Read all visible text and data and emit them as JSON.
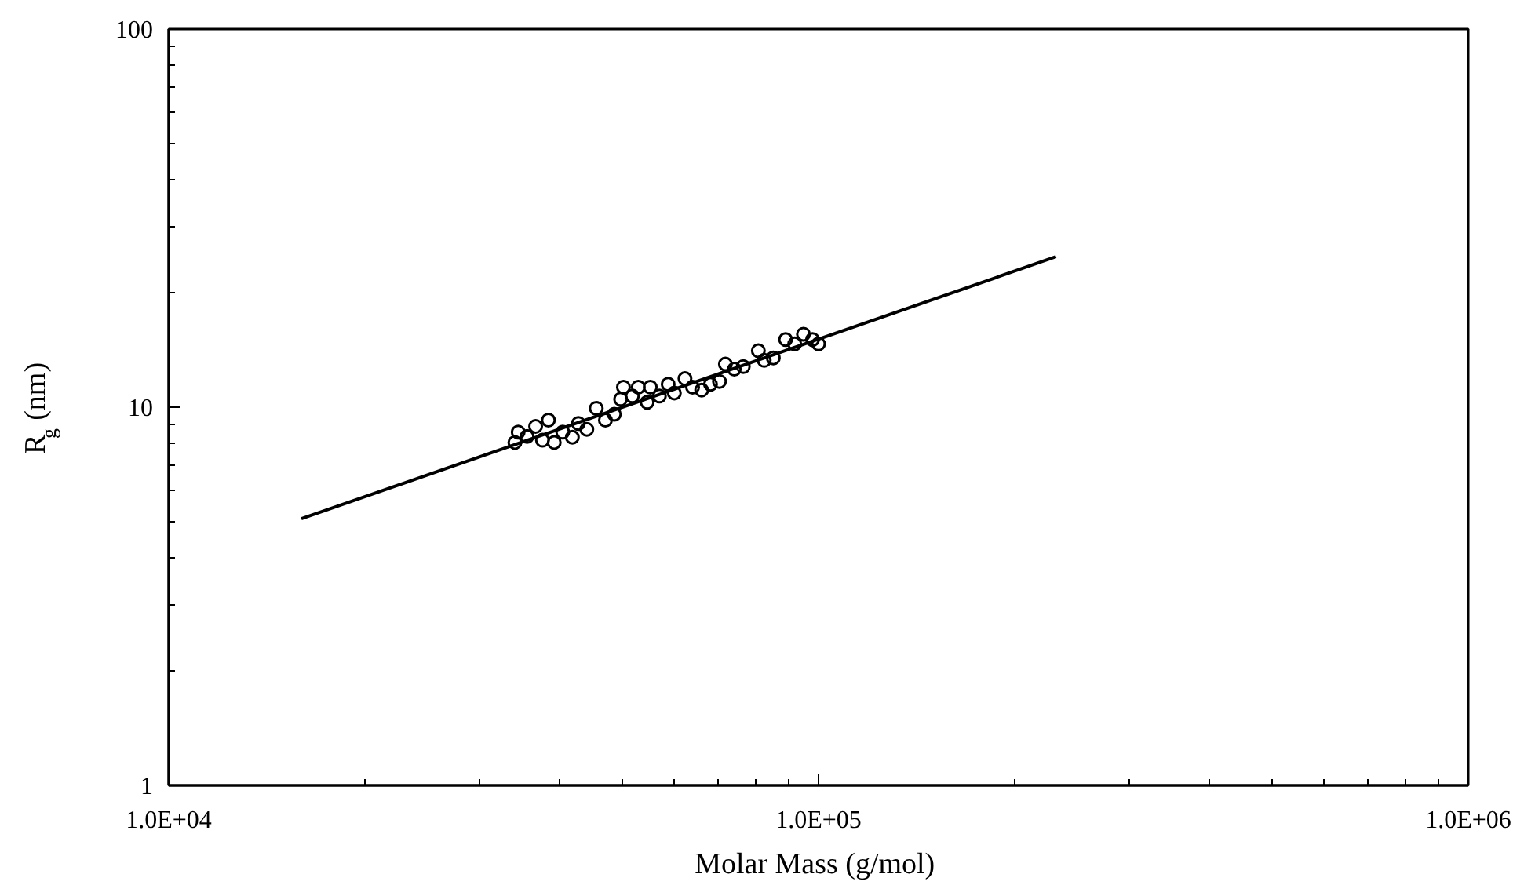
{
  "chart_data": {
    "type": "scatter",
    "xlabel": "Molar Mass  (g/mol)",
    "ylabel": "R$_{g}$ (nm)",
    "log": "xy",
    "grid": false,
    "xlim": [
      10000,
      1000000
    ],
    "ylim": [
      1,
      100
    ],
    "xticks": [
      {
        "value": 10000,
        "label": "1.0E+04"
      },
      {
        "value": 20000,
        "label": null
      },
      {
        "value": 30000,
        "label": null
      },
      {
        "value": 40000,
        "label": null
      },
      {
        "value": 50000,
        "label": null
      },
      {
        "value": 60000,
        "label": null
      },
      {
        "value": 70000,
        "label": null
      },
      {
        "value": 80000,
        "label": null
      },
      {
        "value": 90000,
        "label": null
      },
      {
        "value": 100000,
        "label": "1.0E+05"
      },
      {
        "value": 200000,
        "label": null
      },
      {
        "value": 300000,
        "label": null
      },
      {
        "value": 400000,
        "label": null
      },
      {
        "value": 500000,
        "label": null
      },
      {
        "value": 600000,
        "label": null
      },
      {
        "value": 700000,
        "label": null
      },
      {
        "value": 800000,
        "label": null
      },
      {
        "value": 900000,
        "label": null
      },
      {
        "value": 1000000,
        "label": "1.0E+06"
      }
    ],
    "yticks": [
      1,
      {
        "value": 2,
        "label": null
      },
      {
        "value": 3,
        "label": null
      },
      {
        "value": 4,
        "label": null
      },
      {
        "value": 5,
        "label": null
      },
      {
        "value": 6,
        "label": null
      },
      {
        "value": 7,
        "label": null
      },
      {
        "value": 8,
        "label": null
      },
      {
        "value": 9,
        "label": null
      },
      10,
      {
        "value": 20,
        "label": null
      },
      {
        "value": 30,
        "label": null
      },
      {
        "value": 40,
        "label": null
      },
      {
        "value": 50,
        "label": null
      },
      {
        "value": 60,
        "label": null
      },
      {
        "value": 70,
        "label": null
      },
      {
        "value": 80,
        "label": null
      },
      {
        "value": 90,
        "label": null
      },
      100
    ],
    "series": [
      {
        "marker": "circle",
        "color": "#000000",
        "x": [
          34100,
          34500,
          35600,
          36700,
          38400,
          37600,
          39200,
          40400,
          41800,
          42700,
          44000,
          45500,
          47000,
          48500,
          50100,
          49600,
          51700,
          52800,
          54500,
          55100,
          56900,
          58700,
          60000,
          62300,
          64000,
          66100,
          68200,
          70400,
          71900,
          74200,
          76600,
          80800,
          82500,
          85200,
          89000,
          91900,
          94800,
          97900,
          100000
        ],
        "values": [
          8.07,
          8.59,
          8.37,
          8.9,
          9.24,
          8.18,
          8.07,
          8.59,
          8.33,
          9.06,
          8.74,
          9.93,
          9.24,
          9.58,
          11.3,
          10.5,
          10.7,
          11.3,
          10.3,
          11.3,
          10.7,
          11.5,
          10.9,
          11.9,
          11.3,
          11.1,
          11.5,
          11.7,
          13.0,
          12.6,
          12.8,
          14.1,
          13.3,
          13.5,
          15.1,
          14.7,
          15.6,
          15.1,
          14.7
        ]
      },
      {
        "type": "line",
        "color": "#000000",
        "x": [
          16000,
          232000
        ],
        "values": [
          5.07,
          25
        ]
      }
    ]
  }
}
